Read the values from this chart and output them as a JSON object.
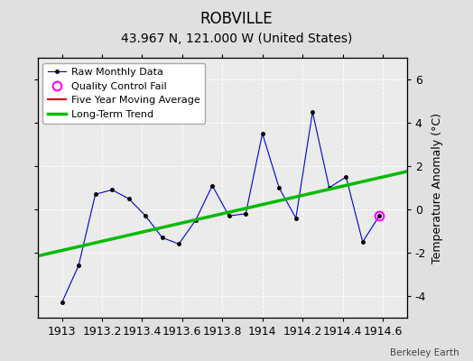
{
  "title": "ROBVILLE",
  "subtitle": "43.967 N, 121.000 W (United States)",
  "credit": "Berkeley Earth",
  "ylabel_right": "Temperature Anomaly (°C)",
  "xlim": [
    1912.88,
    1914.72
  ],
  "ylim": [
    -5.0,
    7.0
  ],
  "yticks": [
    -4,
    -2,
    0,
    2,
    4,
    6
  ],
  "xticks": [
    1913,
    1913.2,
    1913.4,
    1913.6,
    1913.8,
    1914,
    1914.2,
    1914.4,
    1914.6
  ],
  "raw_x": [
    1913.0,
    1913.083,
    1913.167,
    1913.25,
    1913.333,
    1913.417,
    1913.5,
    1913.583,
    1913.667,
    1913.75,
    1913.833,
    1913.917,
    1914.0,
    1914.083,
    1914.167,
    1914.25,
    1914.333,
    1914.417,
    1914.5,
    1914.583
  ],
  "raw_y": [
    -4.3,
    -2.6,
    0.7,
    0.9,
    0.5,
    -0.3,
    -1.3,
    -1.6,
    -0.5,
    1.1,
    -0.3,
    -0.2,
    3.5,
    1.0,
    -0.4,
    4.5,
    1.0,
    1.5,
    -1.5,
    -0.3
  ],
  "qc_fail_x": [
    1914.583
  ],
  "qc_fail_y": [
    -0.3
  ],
  "trend_x": [
    1912.88,
    1914.72
  ],
  "trend_y": [
    -2.15,
    1.75
  ],
  "background_color": "#e0e0e0",
  "plot_bg_color": "#ebebeb",
  "raw_line_color": "#0000cc",
  "raw_marker_color": "#000000",
  "trend_color": "#00bb00",
  "qc_color": "#ff00ff",
  "mavg_color": "#dd0000",
  "title_fontsize": 12,
  "subtitle_fontsize": 10,
  "tick_fontsize": 9,
  "ylabel_fontsize": 9,
  "grid_color": "#ffffff",
  "legend_fontsize": 8
}
